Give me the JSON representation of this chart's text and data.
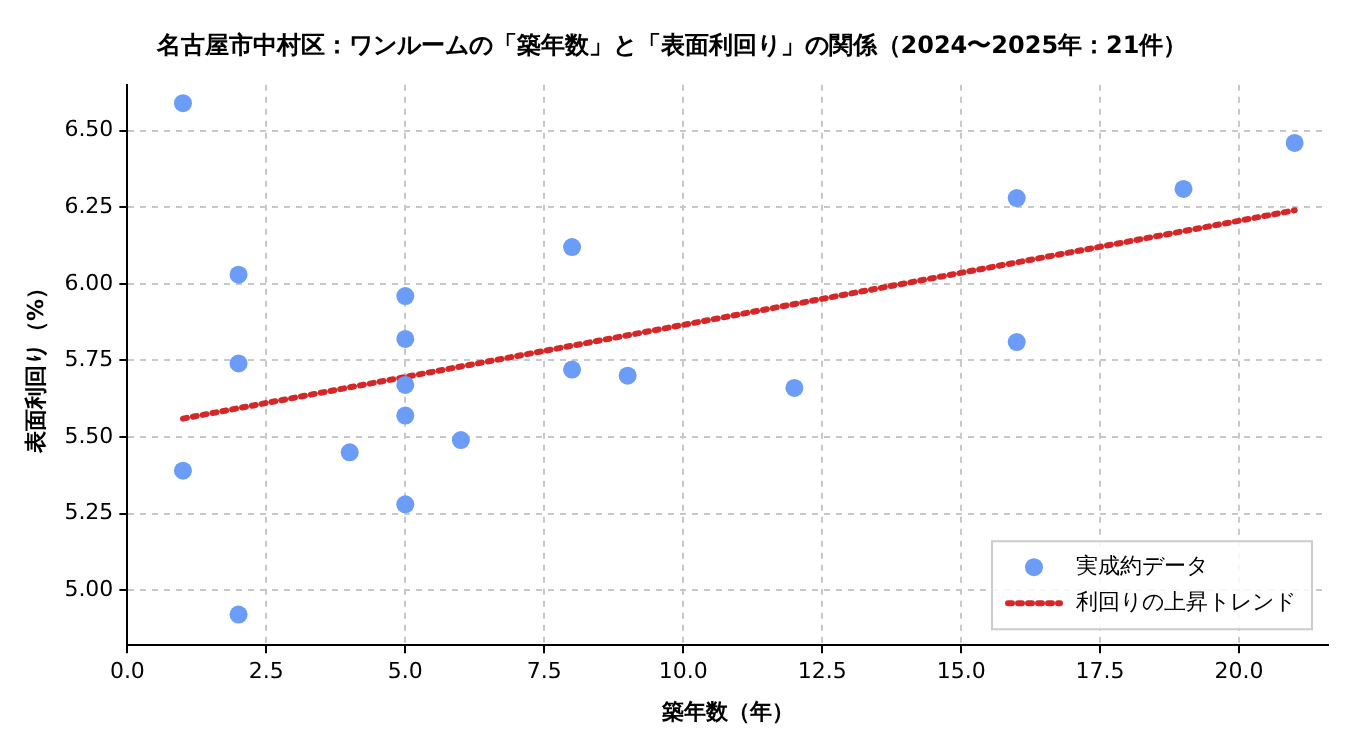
{
  "chart_data": {
    "type": "scatter",
    "title": "名古屋市中村区：ワンルームの「築年数」と「表面利回り」の関係（2024〜2025年：21件）",
    "xlabel": "築年数（年）",
    "ylabel": "表面利回り（%）",
    "xlim": [
      0,
      21.6
    ],
    "xticks": [
      {
        "value": 0,
        "label": "0.0"
      },
      {
        "value": 2.5,
        "label": "2.5"
      },
      {
        "value": 5,
        "label": "5.0"
      },
      {
        "value": 7.5,
        "label": "7.5"
      },
      {
        "value": 10,
        "label": "10.0"
      },
      {
        "value": 12.5,
        "label": "12.5"
      },
      {
        "value": 15,
        "label": "15.0"
      },
      {
        "value": 17.5,
        "label": "17.5"
      },
      {
        "value": 20,
        "label": "20.0"
      }
    ],
    "ylim": [
      4.82,
      6.65
    ],
    "yticks": [
      {
        "value": 5,
        "label": "5.00"
      },
      {
        "value": 5.25,
        "label": "5.25"
      },
      {
        "value": 5.5,
        "label": "5.50"
      },
      {
        "value": 5.75,
        "label": "5.75"
      },
      {
        "value": 6,
        "label": "6.00"
      },
      {
        "value": 6.25,
        "label": "6.25"
      },
      {
        "value": 6.5,
        "label": "6.50"
      }
    ],
    "grid": true,
    "legend": "bottom right",
    "series": [
      {
        "name": "実成約データ",
        "type": "scatter",
        "color": "#6b9cf7",
        "marker": "circle",
        "x": [
          1,
          2,
          5,
          8,
          5,
          2,
          8,
          9,
          5,
          12,
          5,
          6,
          4,
          1,
          5,
          2,
          16,
          16,
          19,
          21
        ],
        "values": [
          6.59,
          6.03,
          5.96,
          6.12,
          5.82,
          5.74,
          5.72,
          5.7,
          5.67,
          5.66,
          5.57,
          5.49,
          5.45,
          5.39,
          5.28,
          4.92,
          6.28,
          5.81,
          6.31,
          6.46
        ]
      },
      {
        "name": "利回りの上昇トレンド",
        "type": "line",
        "color": "#d62728",
        "line_style": "dotted",
        "marker": "none",
        "x": [
          1,
          21
        ],
        "values": [
          5.56,
          6.24
        ]
      }
    ]
  }
}
